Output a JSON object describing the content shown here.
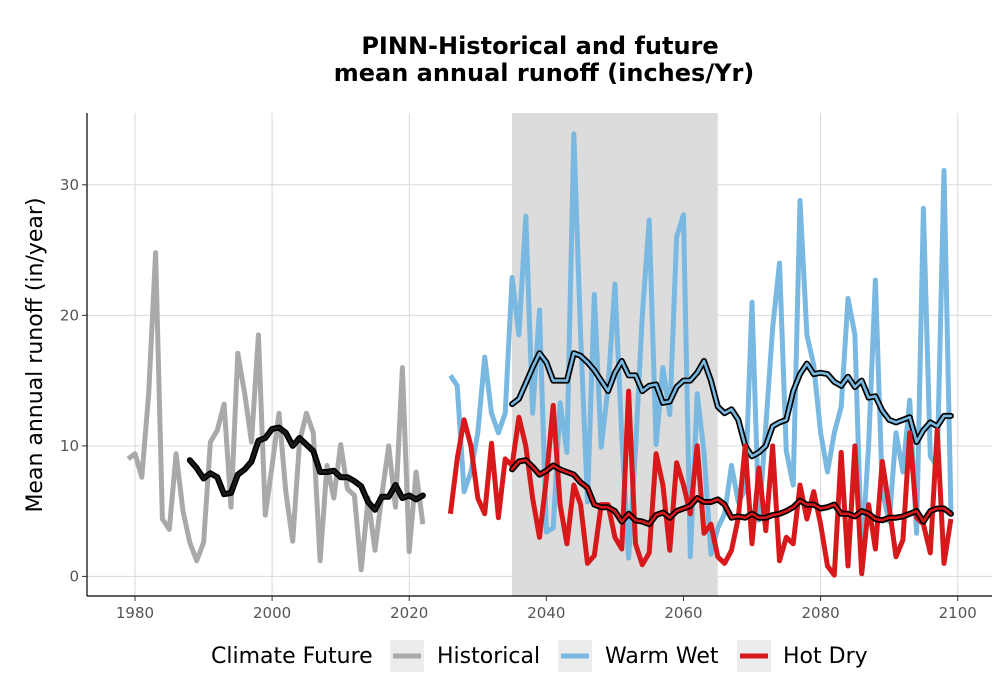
{
  "chart_data": {
    "type": "line",
    "title_line1": "PINN-Historical and future",
    "title_line2": "mean annual runoff (inches/Yr)",
    "ylabel": "Mean annual runoff (in/year)",
    "xlabel": "",
    "xlim": [
      1973,
      2105
    ],
    "ylim": [
      -1.5,
      35.5
    ],
    "x_ticks": [
      1980,
      2000,
      2020,
      2040,
      2060,
      2080,
      2100
    ],
    "y_ticks": [
      0,
      10,
      20,
      30
    ],
    "grid": true,
    "highlight_period": [
      2035,
      2065
    ],
    "legend": {
      "title": "Climate Future",
      "position": "bottom",
      "items": [
        {
          "label": "Historical",
          "color": "#a9a9a9"
        },
        {
          "label": "Warm Wet",
          "color": "#79b8e0"
        },
        {
          "label": "Hot Dry",
          "color": "#d7191c"
        }
      ]
    },
    "series": [
      {
        "name": "Historical",
        "color": "#a9a9a9",
        "x": [
          1979,
          1980,
          1981,
          1982,
          1983,
          1984,
          1985,
          1986,
          1987,
          1988,
          1989,
          1990,
          1991,
          1992,
          1993,
          1994,
          1995,
          1996,
          1997,
          1998,
          1999,
          2000,
          2001,
          2002,
          2003,
          2004,
          2005,
          2006,
          2007,
          2008,
          2009,
          2010,
          2011,
          2012,
          2013,
          2014,
          2015,
          2016,
          2017,
          2018,
          2019,
          2020,
          2021,
          2022
        ],
        "values": [
          9.0,
          9.4,
          7.6,
          14.0,
          24.8,
          4.4,
          3.6,
          9.4,
          5.0,
          2.6,
          1.2,
          2.6,
          10.3,
          11.2,
          13.2,
          5.3,
          17.1,
          14.0,
          10.3,
          18.5,
          4.7,
          8.5,
          12.5,
          6.5,
          2.7,
          10.3,
          12.5,
          11.0,
          1.2,
          8.5,
          6.0,
          10.1,
          6.7,
          6.2,
          0.5,
          6.0,
          2.0,
          6.2,
          10.0,
          5.3,
          16.0,
          1.9,
          8.0,
          4.0
        ]
      },
      {
        "name": "Historical smooth",
        "color": "#000000",
        "style": "smooth-dark",
        "x": [
          1988,
          1989,
          1990,
          1991,
          1992,
          1993,
          1994,
          1995,
          1996,
          1997,
          1998,
          1999,
          2000,
          2001,
          2002,
          2003,
          2004,
          2005,
          2006,
          2007,
          2008,
          2009,
          2010,
          2011,
          2012,
          2013,
          2014,
          2015,
          2016,
          2017,
          2018,
          2019,
          2020,
          2021,
          2022
        ],
        "values": [
          8.9,
          8.3,
          7.5,
          7.9,
          7.6,
          6.3,
          6.4,
          7.8,
          8.2,
          8.8,
          10.4,
          10.6,
          11.3,
          11.4,
          11.0,
          10.0,
          10.6,
          10.1,
          9.6,
          8.0,
          8.0,
          8.1,
          7.6,
          7.6,
          7.3,
          6.9,
          5.7,
          5.1,
          6.1,
          6.1,
          7.0,
          6.0,
          6.2,
          5.9,
          6.2
        ]
      },
      {
        "name": "Warm Wet",
        "color": "#79b8e0",
        "x": [
          2026,
          2027,
          2028,
          2029,
          2030,
          2031,
          2032,
          2033,
          2034,
          2035,
          2036,
          2037,
          2038,
          2039,
          2040,
          2041,
          2042,
          2043,
          2044,
          2045,
          2046,
          2047,
          2048,
          2049,
          2050,
          2051,
          2052,
          2053,
          2054,
          2055,
          2056,
          2057,
          2058,
          2059,
          2060,
          2061,
          2062,
          2063,
          2064,
          2065,
          2066,
          2067,
          2068,
          2069,
          2070,
          2071,
          2072,
          2073,
          2074,
          2075,
          2076,
          2077,
          2078,
          2079,
          2080,
          2081,
          2082,
          2083,
          2084,
          2085,
          2086,
          2087,
          2088,
          2089,
          2090,
          2091,
          2092,
          2093,
          2094,
          2095,
          2096,
          2097,
          2098,
          2099
        ],
        "values": [
          15.4,
          14.6,
          6.5,
          8.0,
          11.0,
          16.8,
          12.5,
          11.0,
          12.5,
          22.9,
          18.5,
          27.6,
          12.5,
          20.4,
          3.4,
          3.7,
          13.3,
          9.5,
          33.9,
          18.5,
          5.7,
          21.6,
          9.9,
          14.5,
          22.4,
          10.7,
          1.4,
          9.7,
          20.0,
          27.3,
          10.1,
          16.0,
          12.4,
          26.0,
          27.7,
          1.5,
          14.0,
          9.5,
          1.7,
          3.7,
          4.8,
          8.5,
          5.7,
          6.6,
          21.0,
          4.3,
          11.5,
          19.0,
          24.0,
          9.6,
          7.0,
          28.8,
          18.5,
          16.2,
          11.0,
          8.0,
          11.0,
          13.0,
          21.3,
          18.5,
          1.5,
          10.0,
          22.7,
          6.5,
          4.2,
          11.0,
          8.0,
          13.5,
          3.3,
          28.2,
          9.2,
          8.4,
          31.1,
          5.0
        ]
      },
      {
        "name": "Warm Wet smooth",
        "color": "#79b8e0",
        "style": "smooth-light",
        "x": [
          2035,
          2036,
          2037,
          2038,
          2039,
          2040,
          2041,
          2042,
          2043,
          2044,
          2045,
          2046,
          2047,
          2048,
          2049,
          2050,
          2051,
          2052,
          2053,
          2054,
          2055,
          2056,
          2057,
          2058,
          2059,
          2060,
          2061,
          2062,
          2063,
          2064,
          2065,
          2066,
          2067,
          2068,
          2069,
          2070,
          2071,
          2072,
          2073,
          2074,
          2075,
          2076,
          2077,
          2078,
          2079,
          2080,
          2081,
          2082,
          2083,
          2084,
          2085,
          2086,
          2087,
          2088,
          2089,
          2090,
          2091,
          2092,
          2093,
          2094,
          2095,
          2096,
          2097,
          2098,
          2099
        ],
        "values": [
          13.2,
          13.6,
          14.8,
          16.0,
          17.1,
          16.4,
          15.0,
          15.0,
          15.0,
          17.1,
          16.9,
          16.4,
          15.8,
          15.0,
          14.2,
          15.6,
          16.5,
          15.4,
          15.4,
          14.2,
          14.6,
          14.7,
          13.3,
          13.4,
          14.5,
          15.0,
          15.0,
          15.6,
          16.5,
          15.0,
          13.0,
          12.5,
          12.8,
          12.0,
          10.0,
          9.2,
          9.5,
          10.0,
          11.5,
          11.8,
          12.0,
          14.2,
          15.5,
          16.3,
          15.5,
          15.6,
          15.5,
          14.9,
          14.6,
          15.3,
          14.5,
          15.0,
          13.7,
          13.8,
          12.7,
          12.0,
          11.8,
          12.0,
          12.2,
          10.3,
          11.2,
          11.8,
          11.5,
          12.3,
          12.3
        ]
      },
      {
        "name": "Hot Dry",
        "color": "#d7191c",
        "x": [
          2026,
          2027,
          2028,
          2029,
          2030,
          2031,
          2032,
          2033,
          2034,
          2035,
          2036,
          2037,
          2038,
          2039,
          2040,
          2041,
          2042,
          2043,
          2044,
          2045,
          2046,
          2047,
          2048,
          2049,
          2050,
          2051,
          2052,
          2053,
          2054,
          2055,
          2056,
          2057,
          2058,
          2059,
          2060,
          2061,
          2062,
          2063,
          2064,
          2065,
          2066,
          2067,
          2068,
          2069,
          2070,
          2071,
          2072,
          2073,
          2074,
          2075,
          2076,
          2077,
          2078,
          2079,
          2080,
          2081,
          2082,
          2083,
          2084,
          2085,
          2086,
          2087,
          2088,
          2089,
          2090,
          2091,
          2092,
          2093,
          2094,
          2095,
          2096,
          2097,
          2098,
          2099
        ],
        "values": [
          4.8,
          9.0,
          12.0,
          10.0,
          6.0,
          4.8,
          10.2,
          4.5,
          9.0,
          8.5,
          12.2,
          10.0,
          6.0,
          3.0,
          7.5,
          13.1,
          5.5,
          2.5,
          7.0,
          5.5,
          1.0,
          1.6,
          5.5,
          5.5,
          3.0,
          2.1,
          14.2,
          2.5,
          0.9,
          1.8,
          9.4,
          7.0,
          2.0,
          8.7,
          7.0,
          4.8,
          10.0,
          3.3,
          4.0,
          1.5,
          1.0,
          2.0,
          4.5,
          10.0,
          2.5,
          8.3,
          3.5,
          10.0,
          1.2,
          3.0,
          2.5,
          7.0,
          4.4,
          6.5,
          4.0,
          0.8,
          0.1,
          9.5,
          0.8,
          10.0,
          0.2,
          5.5,
          2.1,
          8.8,
          5.3,
          1.5,
          2.8,
          11.0,
          4.5,
          4.0,
          1.8,
          11.2,
          1.0,
          4.4
        ]
      },
      {
        "name": "Hot Dry smooth",
        "color": "#d7191c",
        "style": "smooth-light",
        "x": [
          2035,
          2036,
          2037,
          2038,
          2039,
          2040,
          2041,
          2042,
          2043,
          2044,
          2045,
          2046,
          2047,
          2048,
          2049,
          2050,
          2051,
          2052,
          2053,
          2054,
          2055,
          2056,
          2057,
          2058,
          2059,
          2060,
          2061,
          2062,
          2063,
          2064,
          2065,
          2066,
          2067,
          2068,
          2069,
          2070,
          2071,
          2072,
          2073,
          2074,
          2075,
          2076,
          2077,
          2078,
          2079,
          2080,
          2081,
          2082,
          2083,
          2084,
          2085,
          2086,
          2087,
          2088,
          2089,
          2090,
          2091,
          2092,
          2093,
          2094,
          2095,
          2096,
          2097,
          2098,
          2099
        ],
        "values": [
          8.2,
          8.8,
          8.9,
          8.4,
          7.8,
          8.1,
          8.5,
          8.2,
          8.0,
          7.8,
          7.2,
          6.8,
          5.5,
          5.3,
          5.3,
          5.0,
          4.2,
          4.8,
          4.3,
          4.2,
          4.0,
          4.7,
          4.9,
          4.5,
          5.0,
          5.2,
          5.4,
          6.0,
          5.7,
          5.7,
          5.9,
          5.5,
          4.5,
          4.6,
          4.5,
          4.8,
          4.5,
          4.5,
          4.7,
          4.8,
          5.0,
          5.3,
          5.8,
          5.5,
          5.5,
          5.2,
          5.3,
          5.5,
          4.8,
          4.8,
          4.6,
          5.0,
          4.8,
          4.4,
          4.3,
          4.5,
          4.5,
          4.6,
          4.8,
          5.0,
          4.2,
          5.0,
          5.2,
          5.2,
          4.8
        ]
      }
    ]
  }
}
